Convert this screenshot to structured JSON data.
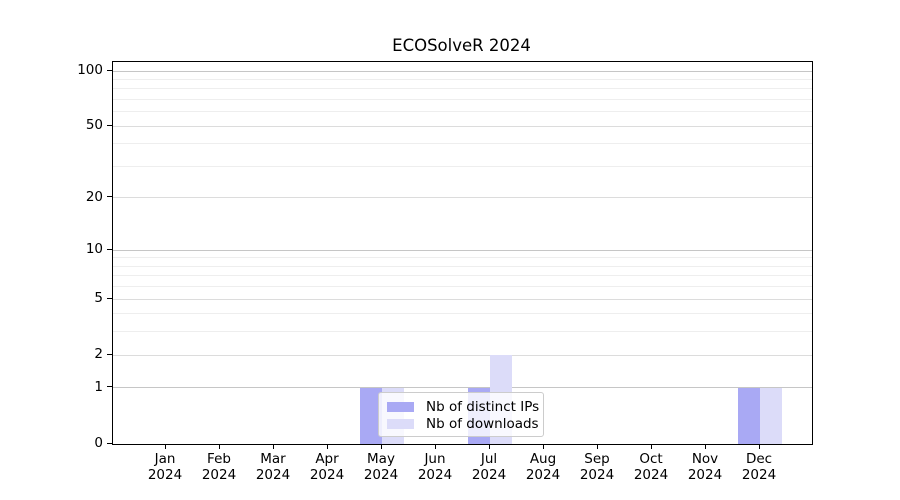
{
  "figure": {
    "background": "#ffffff"
  },
  "chart_data": {
    "type": "bar",
    "title": "ECOSolveR 2024",
    "x": {
      "categories": [
        "Jan",
        "Feb",
        "Mar",
        "Apr",
        "May",
        "Jun",
        "Jul",
        "Aug",
        "Sep",
        "Oct",
        "Nov",
        "Dec"
      ],
      "year_line": "2024"
    },
    "series": [
      {
        "name": "Nb of distinct IPs",
        "color": "#a9a9f4",
        "values": [
          0,
          0,
          0,
          0,
          1,
          0,
          1,
          0,
          0,
          0,
          0,
          1
        ]
      },
      {
        "name": "Nb of downloads",
        "color": "#dcdcf9",
        "values": [
          0,
          0,
          0,
          0,
          1,
          0,
          2,
          0,
          0,
          0,
          0,
          1
        ]
      }
    ],
    "yscale": "log1p",
    "ylim": [
      0,
      112
    ],
    "yticks": [
      0,
      1,
      2,
      5,
      10,
      20,
      50,
      100
    ],
    "grid": {
      "on": true,
      "major_lines": [
        1,
        10,
        100
      ],
      "major_color": "#c6c6c6",
      "mid_lines": [
        2,
        5,
        20,
        50
      ],
      "mid_color": "#dcdcdc",
      "minor_lines": [
        3,
        4,
        6,
        7,
        8,
        9,
        30,
        40,
        60,
        70,
        80,
        90
      ],
      "minor_color": "#eeeeee"
    },
    "legend": {
      "position": "inside-bottom-center"
    }
  }
}
